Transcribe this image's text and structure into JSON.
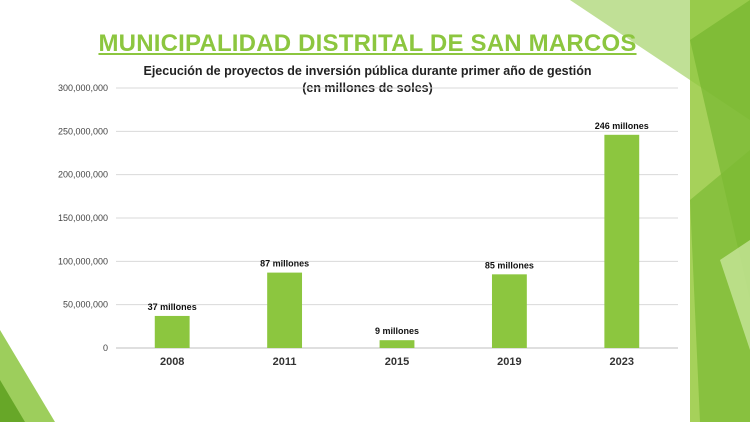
{
  "slide": {
    "title": "MUNICIPALIDAD DISTRITAL DE SAN MARCOS",
    "accent_color": "#8cc63f",
    "dark_accent_color": "#5a9e1c"
  },
  "chart_data": {
    "type": "bar",
    "title": "Ejecución de proyectos de inversión pública durante primer año de gestión",
    "subtitle": "(en millones de soles)",
    "xlabel": "",
    "ylabel": "",
    "categories": [
      "2008",
      "2011",
      "2015",
      "2019",
      "2023"
    ],
    "values": [
      37000000,
      87000000,
      9000000,
      85000000,
      246000000
    ],
    "data_labels": [
      "37 millones",
      "87 millones",
      "9 millones",
      "85 millones",
      "246 millones"
    ],
    "ylim": [
      0,
      300000000
    ],
    "yticks": [
      0,
      50000000,
      100000000,
      150000000,
      200000000,
      250000000,
      300000000
    ],
    "ytick_labels": [
      "0",
      "50,000,000",
      "100,000,000",
      "150,000,000",
      "200,000,000",
      "250,000,000",
      "300,000,000"
    ],
    "grid": true,
    "bar_color": "#8cc63f",
    "grid_color": "#d9d9d9"
  }
}
